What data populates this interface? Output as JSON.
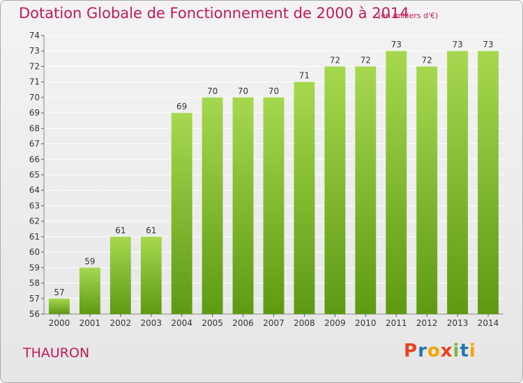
{
  "title": "Dotation Globale de Fonctionnement de 2000 à 2014",
  "subtitle": "(en milliers d'€)",
  "commune": "THAURON",
  "brand": {
    "letters": [
      "P",
      "r",
      "o",
      "x",
      "i",
      "t",
      "i"
    ],
    "colors": [
      "#e8431f",
      "#1f78b4",
      "#f5a300",
      "#e8431f",
      "#7cb342",
      "#1f78b4",
      "#f5a300"
    ]
  },
  "colors": {
    "bar_light": "#a6d84f",
    "bar_dark": "#5d9a12",
    "title": "#c1185b",
    "grid": "#ffffff"
  },
  "chart_data": {
    "type": "bar",
    "title": "Dotation Globale de Fonctionnement de 2000 à 2014",
    "subtitle": "(en milliers d'€)",
    "categories": [
      "2000",
      "2001",
      "2002",
      "2003",
      "2004",
      "2005",
      "2006",
      "2007",
      "2008",
      "2009",
      "2010",
      "2011",
      "2012",
      "2013",
      "2014"
    ],
    "values": [
      57,
      59,
      61,
      61,
      69,
      70,
      70,
      70,
      71,
      72,
      72,
      73,
      72,
      73,
      73
    ],
    "ylim": [
      56,
      74
    ],
    "yticks": [
      56,
      57,
      58,
      59,
      60,
      61,
      62,
      63,
      64,
      65,
      66,
      67,
      68,
      69,
      70,
      71,
      72,
      73,
      74
    ],
    "grid": true,
    "legend": "none"
  }
}
